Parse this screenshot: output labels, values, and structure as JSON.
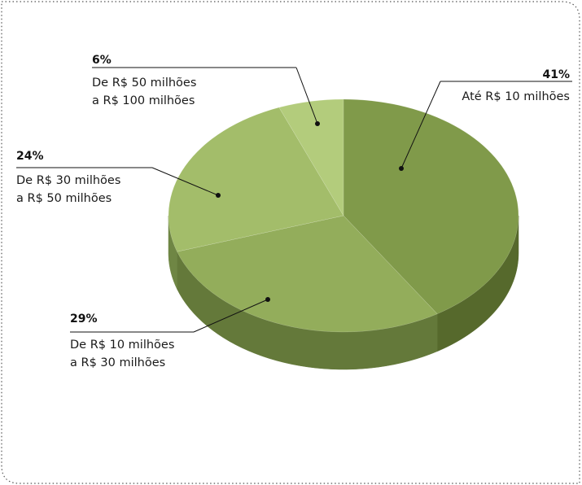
{
  "chart_data": {
    "type": "pie",
    "title": "",
    "slices": [
      {
        "label": "Até R$ 10 milhões",
        "value": 41,
        "value_label": "41%",
        "line1": "Até R$ 10 milhões",
        "line2": "",
        "color": "#809a4a",
        "side": "#56692c"
      },
      {
        "label": "De R$ 10 milhões a R$ 30 milhões",
        "value": 29,
        "value_label": "29%",
        "line1": "De R$ 10 milhões",
        "line2": "a R$ 30 milhões",
        "color": "#93ad5b",
        "side": "#64793a"
      },
      {
        "label": "De R$ 30 milhões a R$ 50 milhões",
        "value": 24,
        "value_label": "24%",
        "line1": "De R$ 30 milhões",
        "line2": "a R$ 50 milhões",
        "color": "#a3bd6a",
        "side": "#6f8644"
      },
      {
        "label": "De R$ 50 milhões a R$ 100 milhões",
        "value": 6,
        "value_label": "6%",
        "line1": "De R$ 50 milhões",
        "line2": "a R$ 100 milhões",
        "color": "#b3cc7c",
        "side": "#7a924d"
      }
    ],
    "legend": "none",
    "colors": {
      "frame": "#555555",
      "leader": "#111111"
    }
  }
}
